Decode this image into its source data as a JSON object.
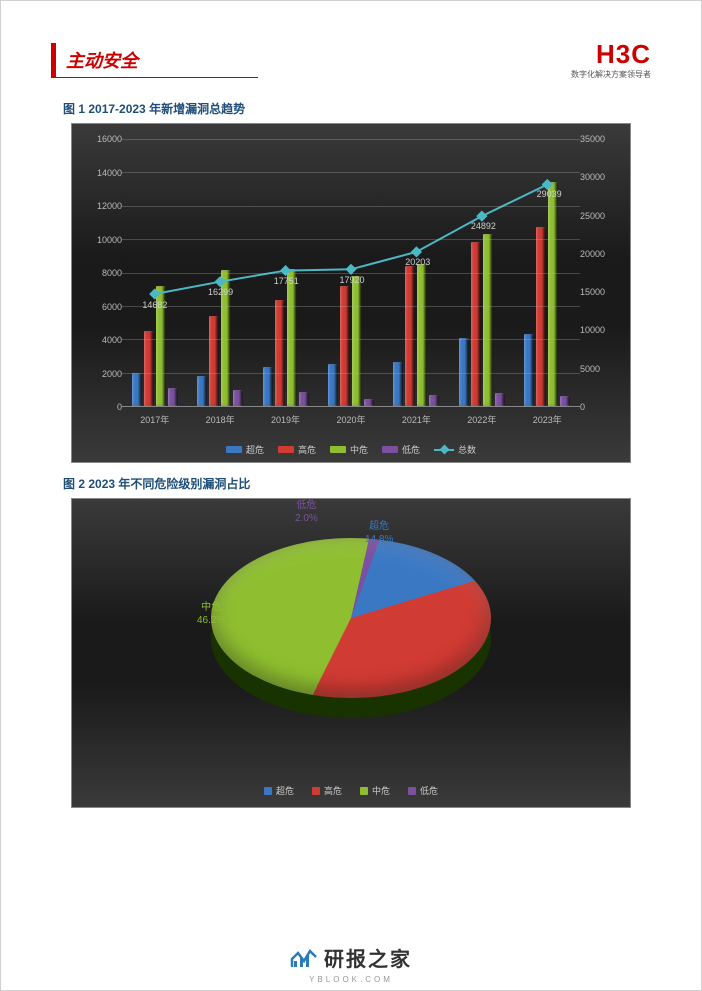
{
  "header": {
    "tagline": "主动安全",
    "logo": "H3C",
    "logo_subtitle": "数字化解决方案领导者"
  },
  "bar_chart": {
    "title": "图 1 2017-2023 年新增漏洞总趋势",
    "type": "bar+line",
    "background_gradient": [
      "#3a3a3a",
      "#1a1a1a"
    ],
    "grid_color": "rgba(180,180,180,0.3)",
    "text_color": "#bbbbbb",
    "categories": [
      "2017年",
      "2018年",
      "2019年",
      "2020年",
      "2021年",
      "2022年",
      "2023年"
    ],
    "y_left": {
      "min": 0,
      "max": 16000,
      "step": 2000
    },
    "y_right": {
      "min": 0,
      "max": 35000,
      "step": 5000
    },
    "series": [
      {
        "name": "超危",
        "color": "#3b78c4",
        "axis": "left",
        "values": [
          1950,
          1800,
          2350,
          2500,
          2650,
          4050,
          4300
        ]
      },
      {
        "name": "高危",
        "color": "#d03b33",
        "axis": "left",
        "values": [
          4500,
          5400,
          6350,
          7200,
          8400,
          9800,
          10750
        ]
      },
      {
        "name": "中危",
        "color": "#8fbf30",
        "axis": "left",
        "values": [
          7200,
          8150,
          8200,
          7800,
          8500,
          10300,
          13400
        ]
      },
      {
        "name": "低危",
        "color": "#7b50a0",
        "axis": "left",
        "values": [
          1050,
          950,
          850,
          420,
          650,
          750,
          600
        ]
      }
    ],
    "line_series": {
      "name": "总数",
      "color": "#4bb8c4",
      "marker": "diamond",
      "axis": "right",
      "values": [
        14682,
        16299,
        17751,
        17920,
        20203,
        24892,
        29039
      ],
      "label_color": "#d0d0d0"
    },
    "legend": [
      "超危",
      "高危",
      "中危",
      "低危",
      "总数"
    ]
  },
  "pie_chart": {
    "title": "图 2  2023 年不同危险级别漏洞占比",
    "type": "pie",
    "background_gradient": [
      "#3a3a3a",
      "#1a1a1a"
    ],
    "slices": [
      {
        "name": "超危",
        "value": 14.8,
        "label": "超危",
        "percent": "14.8%",
        "color": "#3b78c4"
      },
      {
        "name": "高危",
        "value": 37.0,
        "label": "高危",
        "percent": "37.0%",
        "color": "#d03b33"
      },
      {
        "name": "中危",
        "value": 46.2,
        "label": "中危",
        "percent": "46.2%",
        "color": "#8fbf30"
      },
      {
        "name": "低危",
        "value": 2.0,
        "label": "低危",
        "percent": "2.0%",
        "color": "#7b50a0"
      }
    ],
    "legend": [
      "超危",
      "高危",
      "中危",
      "低危"
    ],
    "label_color": "#cccccc"
  },
  "footer": {
    "brand": "研报之家",
    "url": "YBLOOK.COM",
    "icon_color": "#2b7bb9"
  }
}
